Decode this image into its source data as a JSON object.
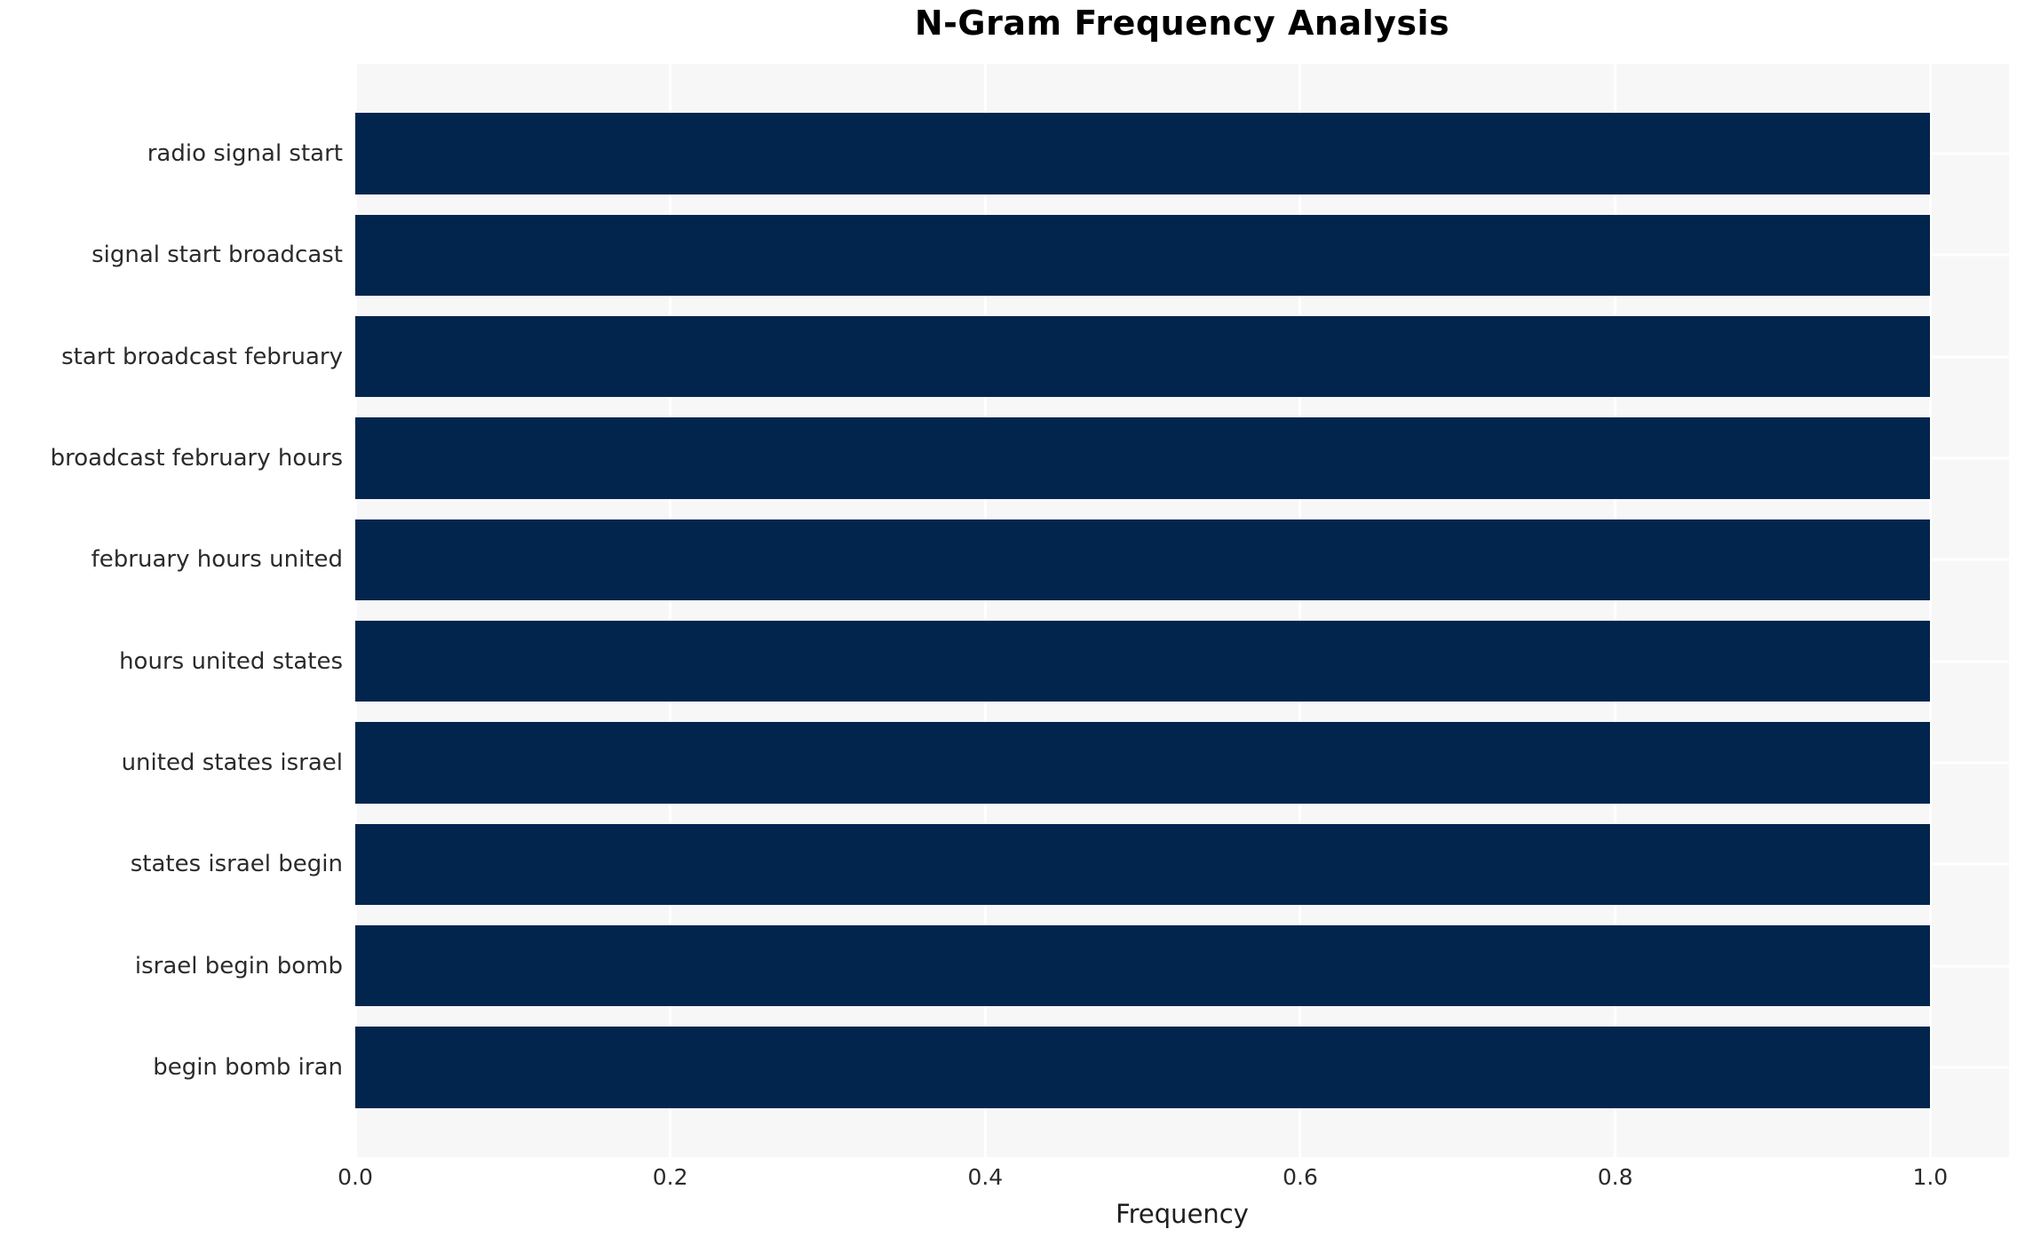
{
  "chart_data": {
    "type": "bar",
    "orientation": "horizontal",
    "title": "N-Gram Frequency Analysis",
    "xlabel": "Frequency",
    "ylabel": "",
    "categories": [
      "radio signal start",
      "signal start broadcast",
      "start broadcast february",
      "broadcast february hours",
      "february hours united",
      "hours united states",
      "united states israel",
      "states israel begin",
      "israel begin bomb",
      "begin bomb iran"
    ],
    "values": [
      1.0,
      1.0,
      1.0,
      1.0,
      1.0,
      1.0,
      1.0,
      1.0,
      1.0,
      1.0
    ],
    "xlim": [
      0,
      1.05
    ],
    "x_tick_values": [
      0.0,
      0.2,
      0.4,
      0.6,
      0.8,
      1.0
    ],
    "x_tick_labels": [
      "0.0",
      "0.2",
      "0.4",
      "0.6",
      "0.8",
      "1.0"
    ],
    "grid": true,
    "legend": false,
    "colors": {
      "bar": "#02254e",
      "plot_background": "#f7f7f7",
      "grid_line": "#ffffff",
      "figure_background": "#ffffff",
      "text": "#2b2b2b"
    }
  }
}
